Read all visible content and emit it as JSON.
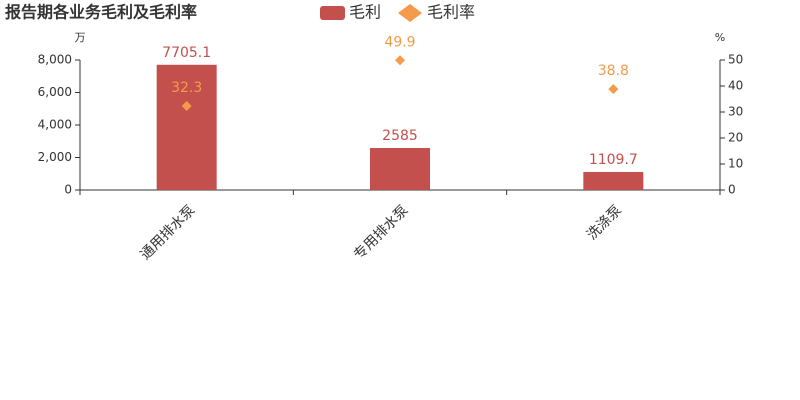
{
  "chart_data": {
    "type": "bar",
    "title": "报告期各业务毛利及毛利率",
    "ylabel": "万",
    "y2label": "%",
    "categories": [
      "通用排水泵",
      "专用排水泵",
      "洗涤泵"
    ],
    "series": [
      {
        "name": "毛利",
        "type": "bar",
        "color": "#c4504e",
        "values": [
          7705.1,
          2585,
          1109.7
        ]
      },
      {
        "name": "毛利率",
        "type": "scatter",
        "axis": "y2",
        "color": "#f59a4a",
        "values": [
          32.3,
          49.9,
          38.8
        ]
      }
    ],
    "ylim": [
      0,
      8000
    ],
    "yticks": [
      0,
      {
        "value": 2000,
        "label": "2,000"
      },
      {
        "value": 4000,
        "label": "4,000"
      },
      {
        "value": 6000,
        "label": "6,000"
      },
      {
        "value": 8000,
        "label": "8,000"
      }
    ],
    "y2lim": [
      0,
      50
    ],
    "y2ticks": [
      0,
      10,
      20,
      30,
      40,
      50
    ],
    "grid": false
  }
}
